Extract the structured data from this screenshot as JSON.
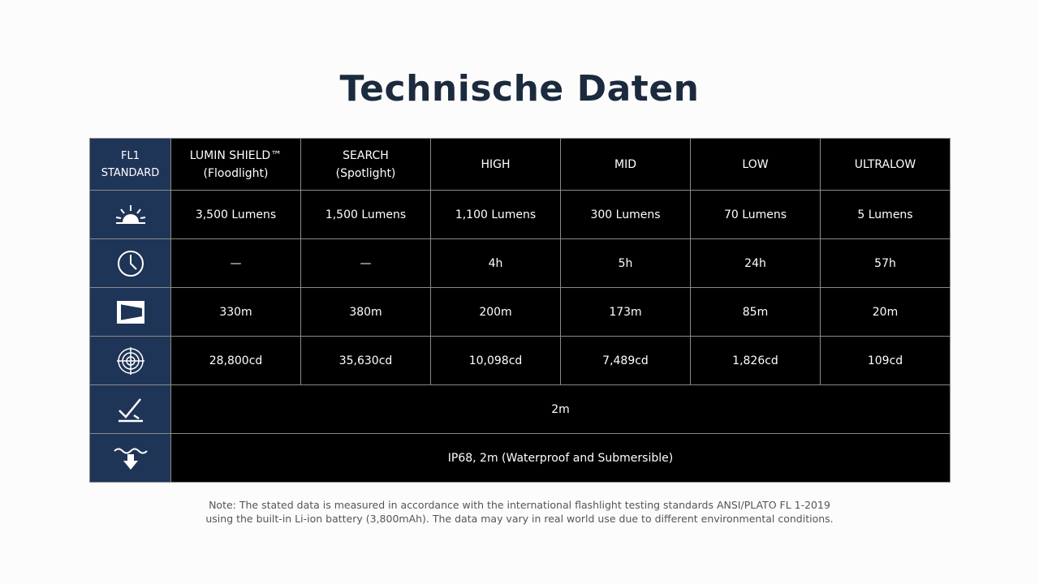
{
  "title": "Technische Daten",
  "table": {
    "header": [
      [
        "FL1",
        "STANDARD"
      ],
      [
        "LUMIN SHIELD™",
        "(Floodlight)"
      ],
      [
        "SEARCH",
        "(Spotlight)"
      ],
      [
        "HIGH"
      ],
      [
        "MID"
      ],
      [
        "LOW"
      ],
      [
        "ULTRALOW"
      ]
    ],
    "rows": [
      [
        "3,500 Lumens",
        "1,500 Lumens",
        "1,100 Lumens",
        "300 Lumens",
        "70 Lumens",
        "5 Lumens"
      ],
      [
        "—",
        "—",
        "4h",
        "5h",
        "24h",
        "57h"
      ],
      [
        "330m",
        "380m",
        "200m",
        "173m",
        "85m",
        "20m"
      ],
      [
        "28,800cd",
        "35,630cd",
        "10,098cd",
        "7,489cd",
        "1,826cd",
        "109cd"
      ],
      [
        "2m"
      ],
      [
        "IP68, 2m (Waterproof and Submersible)"
      ]
    ]
  },
  "note": [
    "Note: The stated data is measured in accordance with the international flashlight testing standards ANSI/PLATO FL 1-2019",
    "using the built-in Li-ion battery (3,800mAh). The data may vary in real world use due to different environmental conditions."
  ]
}
